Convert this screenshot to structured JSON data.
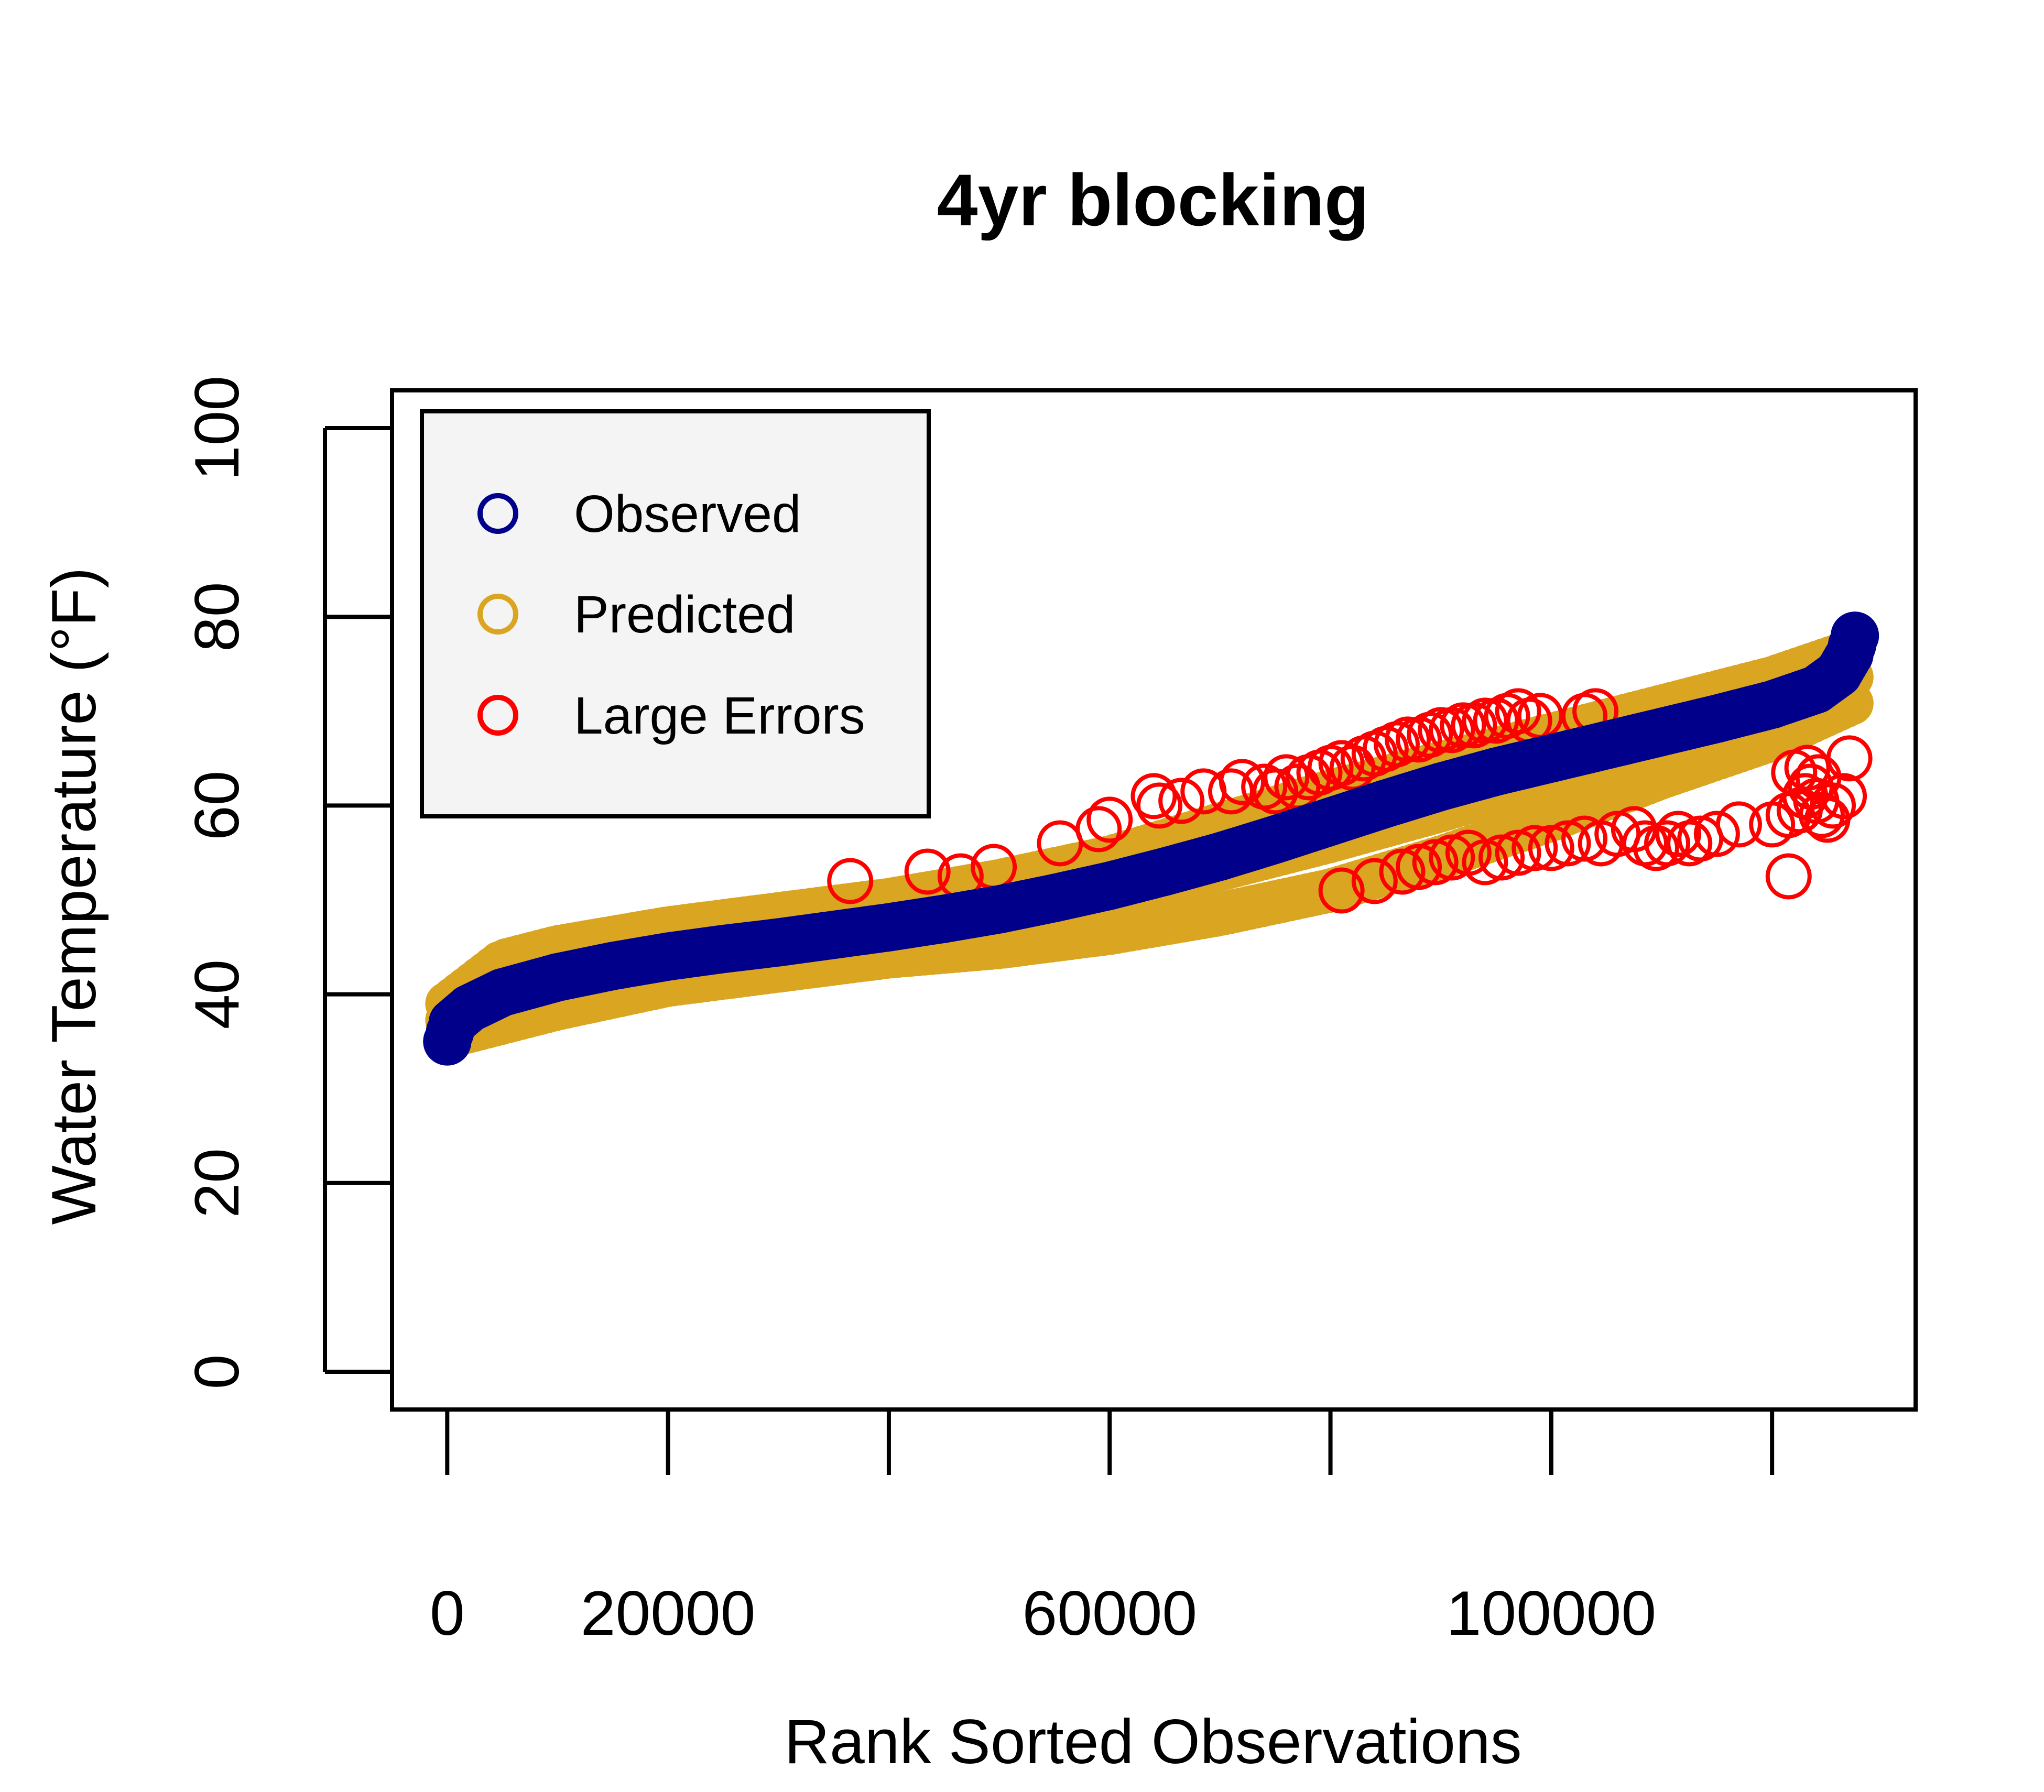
{
  "chart_data": {
    "type": "scatter",
    "title": "4yr blocking",
    "xlabel": "Rank Sorted Observations",
    "ylabel": "Water Temperature (°F)",
    "xlim": [
      -5000,
      133000
    ],
    "ylim": [
      -4,
      104
    ],
    "x_ticks": [
      0,
      20000,
      40000,
      60000,
      80000,
      100000,
      120000
    ],
    "x_tick_labels": [
      "0",
      "20000",
      "",
      "60000",
      "",
      "100000",
      ""
    ],
    "y_ticks": [
      0,
      20,
      40,
      60,
      80,
      100
    ],
    "y_tick_labels": [
      "0",
      "20",
      "40",
      "60",
      "80",
      "100"
    ],
    "legend": {
      "placement": "top-left",
      "entries": [
        {
          "label": "Observed",
          "color": "#00008B"
        },
        {
          "label": "Predicted",
          "color": "#DAA520"
        },
        {
          "label": "Large Errors",
          "color": "#FF0000"
        }
      ]
    },
    "series": [
      {
        "name": "Observed",
        "color": "#00008B",
        "style": "filled-circles",
        "points": [
          [
            0,
            35
          ],
          [
            500,
            37
          ],
          [
            2000,
            38.5
          ],
          [
            5000,
            40.2
          ],
          [
            10000,
            41.8
          ],
          [
            15000,
            43
          ],
          [
            20000,
            44
          ],
          [
            25000,
            44.8
          ],
          [
            30000,
            45.5
          ],
          [
            35000,
            46.3
          ],
          [
            40000,
            47.1
          ],
          [
            45000,
            48
          ],
          [
            50000,
            49
          ],
          [
            55000,
            50.2
          ],
          [
            60000,
            51.5
          ],
          [
            65000,
            53
          ],
          [
            70000,
            54.6
          ],
          [
            75000,
            56.4
          ],
          [
            80000,
            58.3
          ],
          [
            85000,
            60.2
          ],
          [
            90000,
            62
          ],
          [
            95000,
            63.6
          ],
          [
            100000,
            65
          ],
          [
            105000,
            66.4
          ],
          [
            110000,
            67.8
          ],
          [
            115000,
            69.2
          ],
          [
            120000,
            70.7
          ],
          [
            124000,
            72.3
          ],
          [
            126000,
            74
          ],
          [
            127000,
            76
          ],
          [
            127500,
            78
          ]
        ]
      },
      {
        "name": "Predicted",
        "color": "#DAA520",
        "style": "filled-circles",
        "band": {
          "x": [
            0,
            5000,
            10000,
            20000,
            30000,
            40000,
            50000,
            60000,
            70000,
            80000,
            90000,
            100000,
            110000,
            120000,
            127500
          ],
          "upper": [
            39,
            43.5,
            45,
            47,
            48.5,
            50,
            52,
            54.5,
            58,
            61.5,
            64.5,
            67.5,
            70.5,
            73.5,
            76.5
          ],
          "lower": [
            35.5,
            37,
            38.5,
            41,
            42.5,
            44,
            45,
            46.5,
            48.5,
            51,
            54.5,
            58.5,
            63,
            67,
            71
          ]
        }
      },
      {
        "name": "Large Errors",
        "color": "#FF0000",
        "style": "open-circles",
        "points": [
          [
            36500,
            52
          ],
          [
            43500,
            53
          ],
          [
            46500,
            52.5
          ],
          [
            49500,
            53.5
          ],
          [
            55500,
            56
          ],
          [
            59000,
            57.5
          ],
          [
            60000,
            58.5
          ],
          [
            64000,
            61
          ],
          [
            64500,
            60
          ],
          [
            66500,
            60.5
          ],
          [
            68500,
            61.5
          ],
          [
            71000,
            61.5
          ],
          [
            72000,
            62.5
          ],
          [
            74000,
            62
          ],
          [
            75000,
            61.5
          ],
          [
            76000,
            63
          ],
          [
            77000,
            62
          ],
          [
            78000,
            63
          ],
          [
            79000,
            63.5
          ],
          [
            80000,
            64
          ],
          [
            81000,
            64.5
          ],
          [
            82000,
            64
          ],
          [
            83000,
            65
          ],
          [
            84000,
            65.5
          ],
          [
            85000,
            66
          ],
          [
            86000,
            66.5
          ],
          [
            87000,
            67
          ],
          [
            88000,
            67
          ],
          [
            89000,
            67.5
          ],
          [
            90000,
            68
          ],
          [
            91000,
            68
          ],
          [
            92000,
            68.5
          ],
          [
            93000,
            68.5
          ],
          [
            94000,
            69
          ],
          [
            95000,
            69
          ],
          [
            96000,
            69.5
          ],
          [
            97000,
            70
          ],
          [
            98000,
            69
          ],
          [
            99000,
            69.5
          ],
          [
            103000,
            69.5
          ],
          [
            104000,
            70
          ],
          [
            81000,
            51
          ],
          [
            84000,
            52
          ],
          [
            86500,
            53
          ],
          [
            88000,
            53.5
          ],
          [
            89500,
            54
          ],
          [
            91000,
            54.5
          ],
          [
            92500,
            55
          ],
          [
            94000,
            54
          ],
          [
            95500,
            54.5
          ],
          [
            97000,
            55
          ],
          [
            98500,
            55.5
          ],
          [
            100000,
            55.5
          ],
          [
            101500,
            56
          ],
          [
            103000,
            56.5
          ],
          [
            104500,
            56
          ],
          [
            106000,
            57
          ],
          [
            107500,
            57.5
          ],
          [
            108500,
            56
          ],
          [
            109500,
            55.5
          ],
          [
            110500,
            56
          ],
          [
            111500,
            57
          ],
          [
            112500,
            56
          ],
          [
            113500,
            56.5
          ],
          [
            115000,
            57
          ],
          [
            117000,
            58
          ],
          [
            120000,
            58
          ],
          [
            121500,
            59
          ],
          [
            122500,
            59.5
          ],
          [
            123000,
            61
          ],
          [
            123500,
            62
          ],
          [
            124000,
            60.5
          ],
          [
            124500,
            59
          ],
          [
            125000,
            58.5
          ],
          [
            125500,
            60
          ],
          [
            122000,
            63.5
          ],
          [
            123200,
            64
          ],
          [
            124200,
            63
          ],
          [
            126500,
            61
          ],
          [
            121500,
            52.5
          ],
          [
            127000,
            65
          ]
        ]
      }
    ]
  }
}
